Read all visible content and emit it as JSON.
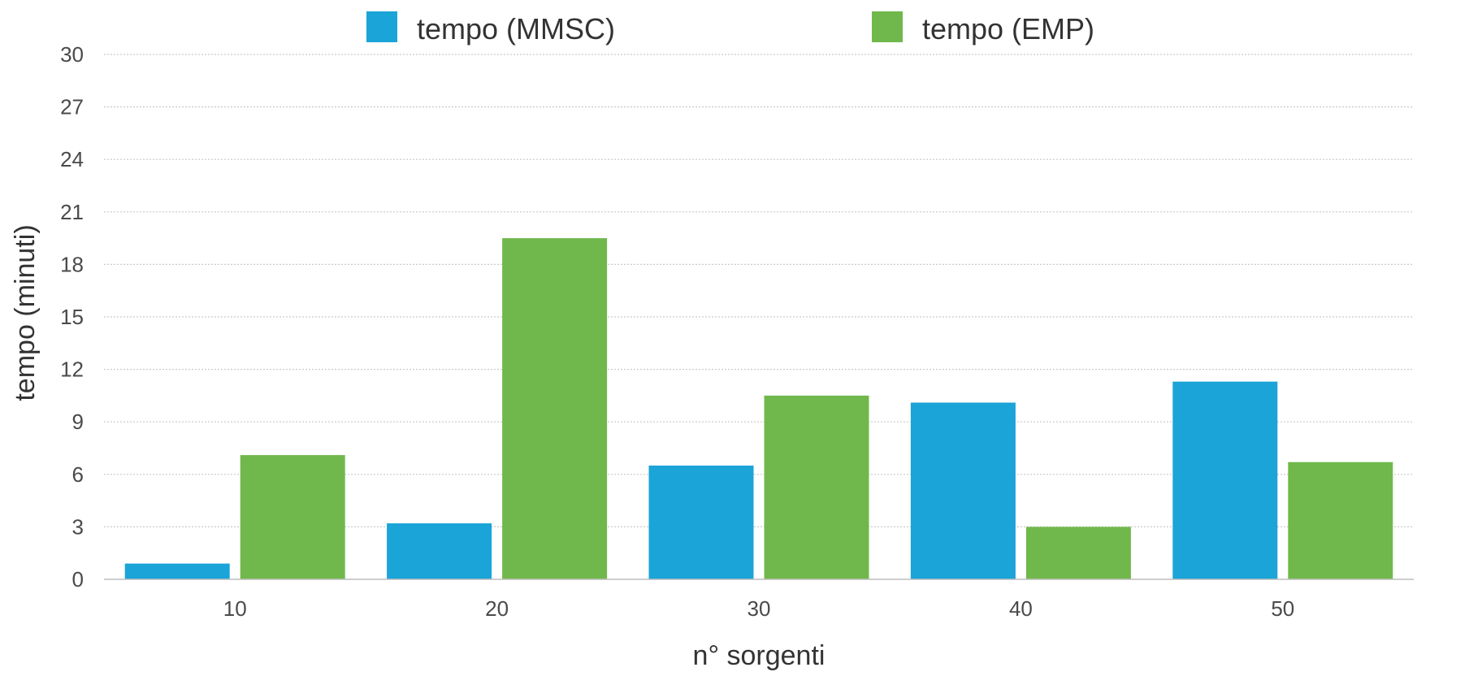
{
  "chart_data": {
    "type": "bar",
    "categories": [
      "10",
      "20",
      "30",
      "40",
      "50"
    ],
    "series": [
      {
        "name": "tempo (MMSC)",
        "color": "#1ba4d7",
        "values": [
          0.9,
          3.2,
          6.5,
          10.1,
          11.3
        ]
      },
      {
        "name": "tempo (EMP)",
        "color": "#70b84c",
        "values": [
          7.1,
          19.5,
          10.5,
          3.0,
          6.7
        ]
      }
    ],
    "title": "",
    "xlabel": "n° sorgenti",
    "ylabel": "tempo (minuti)",
    "ylim": [
      0,
      30
    ],
    "yticks": [
      0,
      3,
      6,
      9,
      12,
      15,
      18,
      21,
      24,
      27,
      30
    ],
    "grid": true,
    "legend_position": "top"
  }
}
